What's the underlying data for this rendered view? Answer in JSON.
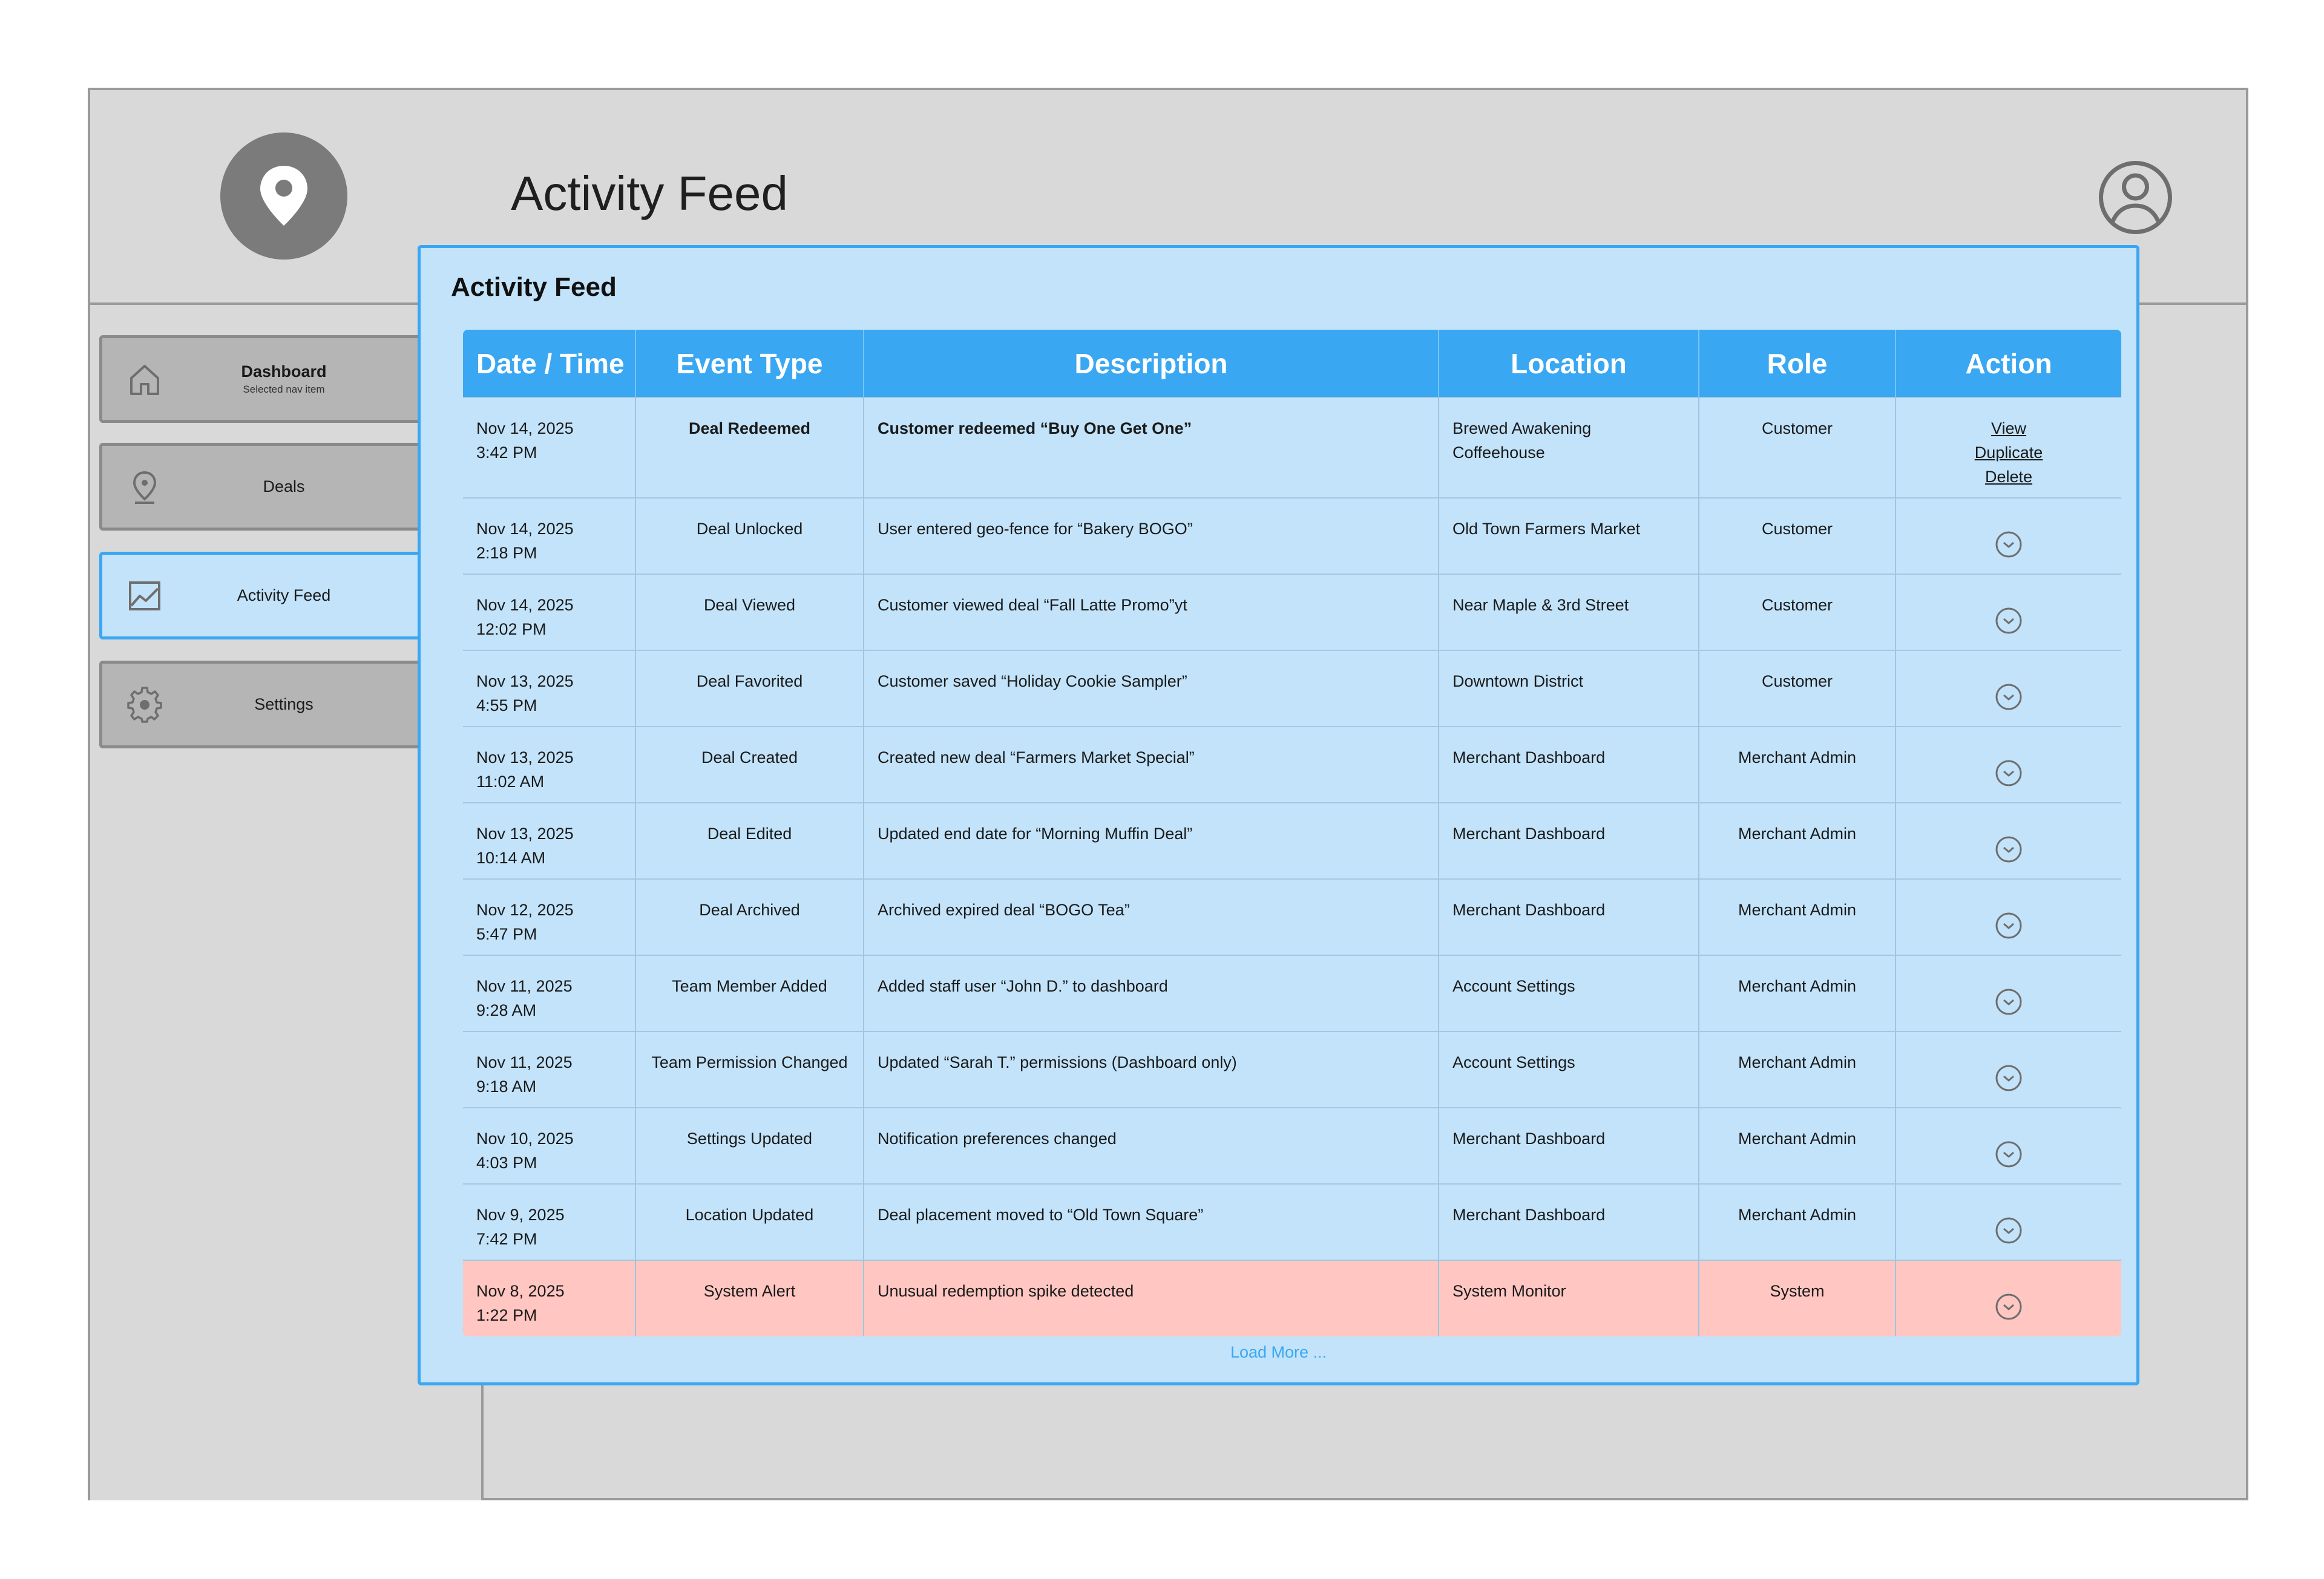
{
  "header": {
    "title": "Activity Feed"
  },
  "sidebar": {
    "items": [
      {
        "label": "Dashboard",
        "sub": "Selected nav item",
        "icon": "home-icon"
      },
      {
        "label": "Deals",
        "icon": "map-pin-icon"
      },
      {
        "label": "Activity Feed",
        "icon": "chart-icon"
      },
      {
        "label": "Settings",
        "icon": "gear-icon"
      }
    ]
  },
  "panel": {
    "title": "Activity Feed",
    "columns": [
      "Date / Time",
      "Event Type",
      "Description",
      "Location",
      "Role",
      "Action"
    ],
    "actions": [
      "View",
      "Duplicate",
      "Delete"
    ],
    "load_more": "Load More ...",
    "rows": [
      {
        "date": "Nov 14, 2025",
        "time": "3:42 PM",
        "event": "Deal Redeemed",
        "desc": "Customer redeemed “Buy One Get One”",
        "loc1": "Brewed Awakening",
        "loc2": "Coffeehouse",
        "role": "Customer"
      },
      {
        "date": "Nov 14, 2025",
        "time": "2:18 PM",
        "event": "Deal Unlocked",
        "desc": "User entered geo-fence for “Bakery BOGO”",
        "loc1": "Old Town Farmers Market",
        "loc2": "",
        "role": "Customer"
      },
      {
        "date": "Nov 14, 2025",
        "time": "12:02 PM",
        "event": "Deal Viewed",
        "desc": "Customer viewed deal “Fall Latte Promo”yt",
        "loc1": "Near Maple & 3rd Street",
        "loc2": "",
        "role": "Customer"
      },
      {
        "date": "Nov 13, 2025",
        "time": "4:55 PM",
        "event": "Deal Favorited",
        "desc": "Customer saved “Holiday Cookie Sampler”",
        "loc1": "Downtown District",
        "loc2": "",
        "role": "Customer"
      },
      {
        "date": "Nov 13, 2025",
        "time": "11:02 AM",
        "event": "Deal Created",
        "desc": "Created new deal “Farmers Market Special”",
        "loc1": "Merchant Dashboard",
        "loc2": "",
        "role": "Merchant Admin"
      },
      {
        "date": "Nov 13, 2025",
        "time": "10:14 AM",
        "event": "Deal Edited",
        "desc": "Updated end date for “Morning Muffin Deal”",
        "loc1": "Merchant Dashboard",
        "loc2": "",
        "role": "Merchant Admin"
      },
      {
        "date": "Nov 12, 2025",
        "time": "5:47 PM",
        "event": "Deal Archived",
        "desc": "Archived expired deal “BOGO Tea”",
        "loc1": "Merchant Dashboard",
        "loc2": "",
        "role": "Merchant Admin"
      },
      {
        "date": "Nov 11, 2025",
        "time": "9:28 AM",
        "event": "Team Member Added",
        "desc": "Added staff user “John D.” to dashboard",
        "loc1": "Account Settings",
        "loc2": "",
        "role": "Merchant Admin"
      },
      {
        "date": "Nov 11, 2025",
        "time": "9:18 AM",
        "event": "Team Permission Changed",
        "desc": "Updated “Sarah T.” permissions (Dashboard only)",
        "loc1": "Account Settings",
        "loc2": "",
        "role": "Merchant Admin"
      },
      {
        "date": "Nov 10, 2025",
        "time": "4:03 PM",
        "event": "Settings Updated",
        "desc": "Notification preferences changed",
        "loc1": "Merchant Dashboard",
        "loc2": "",
        "role": "Merchant Admin"
      },
      {
        "date": "Nov 9, 2025",
        "time": "7:42 PM",
        "event": "Location Updated",
        "desc": "Deal placement moved to “Old Town Square”",
        "loc1": "Merchant Dashboard",
        "loc2": "",
        "role": "Merchant Admin"
      },
      {
        "date": "Nov 8, 2025",
        "time": "1:22 PM",
        "event": "System Alert",
        "desc": "Unusual redemption spike detected",
        "loc1": "System Monitor",
        "loc2": "",
        "role": "System",
        "alert": true
      }
    ]
  },
  "colors": {
    "accent": "#3aa7f2",
    "panel_bg": "#c2e3fa",
    "alert_bg": "#ffc6c2",
    "chrome_bg": "#d9d9d9"
  }
}
